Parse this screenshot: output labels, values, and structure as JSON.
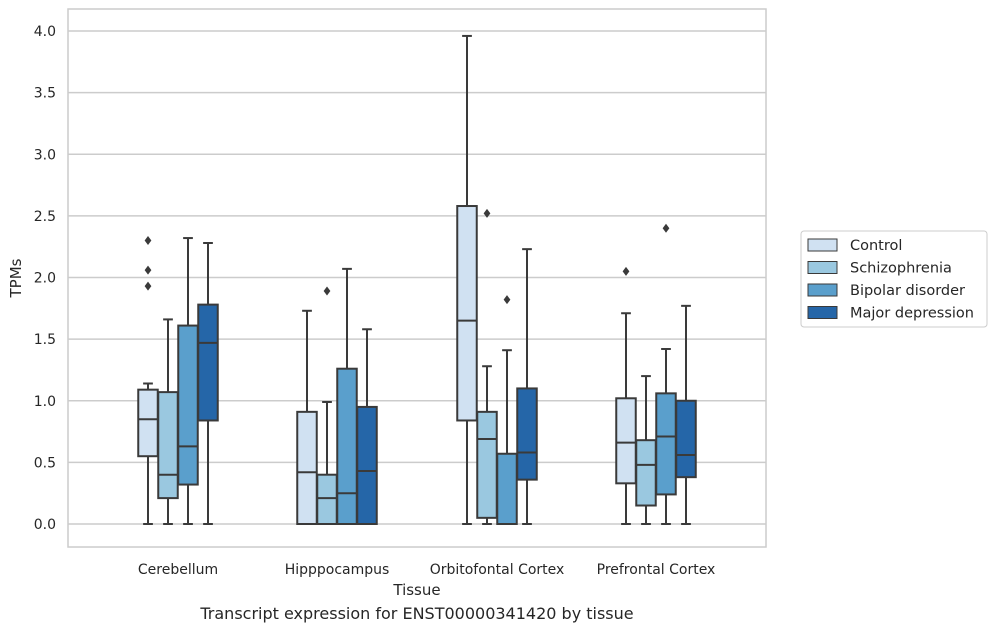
{
  "caption": "Transcript expression for ENST00000341420 by tissue",
  "chart_data": {
    "type": "box",
    "xlabel": "Tissue",
    "ylabel": "TPMs",
    "ylim": [
      -0.18,
      4.18
    ],
    "yticks": [
      "0.0",
      "0.5",
      "1.0",
      "1.5",
      "2.0",
      "2.5",
      "3.0",
      "3.5",
      "4.0"
    ],
    "grid": true,
    "legend_position": "right",
    "categories": [
      "Cerebellum",
      "Hipppocampus",
      "Orbitofontal Cortex",
      "Prefrontal Cortex"
    ],
    "series": [
      {
        "name": "Control",
        "color": "#d0e1f2",
        "boxes": [
          {
            "whislo": 0.0,
            "q1": 0.55,
            "med": 0.85,
            "q3": 1.09,
            "whishi": 1.14,
            "fliers": [
              1.93,
              2.06,
              2.3
            ]
          },
          {
            "whislo": 0.0,
            "q1": 0.0,
            "med": 0.42,
            "q3": 0.91,
            "whishi": 1.73,
            "fliers": []
          },
          {
            "whislo": 0.0,
            "q1": 0.84,
            "med": 1.65,
            "q3": 2.58,
            "whishi": 3.96,
            "fliers": []
          },
          {
            "whislo": 0.0,
            "q1": 0.33,
            "med": 0.66,
            "q3": 1.02,
            "whishi": 1.71,
            "fliers": [
              2.05
            ]
          }
        ]
      },
      {
        "name": "Schizophrenia",
        "color": "#9ac8e0",
        "boxes": [
          {
            "whislo": 0.0,
            "q1": 0.21,
            "med": 0.4,
            "q3": 1.07,
            "whishi": 1.66,
            "fliers": []
          },
          {
            "whislo": 0.0,
            "q1": 0.0,
            "med": 0.21,
            "q3": 0.4,
            "whishi": 0.99,
            "fliers": [
              1.89
            ]
          },
          {
            "whislo": 0.0,
            "q1": 0.05,
            "med": 0.69,
            "q3": 0.91,
            "whishi": 1.28,
            "fliers": [
              2.52
            ]
          },
          {
            "whislo": 0.0,
            "q1": 0.15,
            "med": 0.48,
            "q3": 0.68,
            "whishi": 1.2,
            "fliers": []
          }
        ]
      },
      {
        "name": "Bipolar disorder",
        "color": "#5a9fcc",
        "boxes": [
          {
            "whislo": 0.0,
            "q1": 0.32,
            "med": 0.63,
            "q3": 1.61,
            "whishi": 2.32,
            "fliers": []
          },
          {
            "whislo": 0.0,
            "q1": 0.0,
            "med": 0.25,
            "q3": 1.26,
            "whishi": 2.07,
            "fliers": []
          },
          {
            "whislo": 0.0,
            "q1": 0.0,
            "med": 0.0,
            "q3": 0.57,
            "whishi": 1.41,
            "fliers": [
              1.82
            ]
          },
          {
            "whislo": 0.0,
            "q1": 0.24,
            "med": 0.71,
            "q3": 1.06,
            "whishi": 1.42,
            "fliers": [
              2.4
            ]
          }
        ]
      },
      {
        "name": "Major depression",
        "color": "#2566a8",
        "boxes": [
          {
            "whislo": 0.0,
            "q1": 0.84,
            "med": 1.47,
            "q3": 1.78,
            "whishi": 2.28,
            "fliers": []
          },
          {
            "whislo": 0.0,
            "q1": 0.0,
            "med": 0.43,
            "q3": 0.95,
            "whishi": 1.58,
            "fliers": []
          },
          {
            "whislo": 0.0,
            "q1": 0.36,
            "med": 0.58,
            "q3": 1.1,
            "whishi": 2.23,
            "fliers": []
          },
          {
            "whislo": 0.0,
            "q1": 0.38,
            "med": 0.56,
            "q3": 1.0,
            "whishi": 1.77,
            "fliers": []
          }
        ]
      }
    ]
  }
}
